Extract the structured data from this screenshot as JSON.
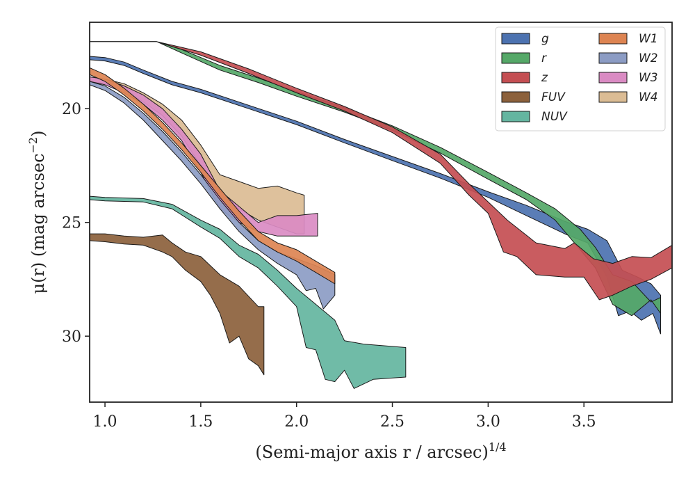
{
  "chart_data": {
    "type": "area",
    "xlabel": "(Semi-major axis r / arcsec)",
    "xlabel_sup": "1/4",
    "ylabel": "μ(r) (mag arcsec",
    "ylabel_sup": "−2",
    "ylabel_close": ")",
    "xlim": [
      0.92,
      3.96
    ],
    "ylim": [
      32.9,
      16.2
    ],
    "y_inverted": true,
    "xticks": [
      1.0,
      1.5,
      2.0,
      2.5,
      3.0,
      3.5
    ],
    "xtick_labels": [
      "1.0",
      "1.5",
      "2.0",
      "2.5",
      "3.0",
      "3.5"
    ],
    "yticks": [
      20,
      25,
      30
    ],
    "ytick_labels": [
      "20",
      "25",
      "30"
    ],
    "grid": false,
    "legend_position": "top-right",
    "legend_columns": 2,
    "series": [
      {
        "name": "g",
        "color": "#4c72b0",
        "upper": [
          [
            0.92,
            17.7
          ],
          [
            1.0,
            17.75
          ],
          [
            1.1,
            17.95
          ],
          [
            1.2,
            18.3
          ],
          [
            1.35,
            18.8
          ],
          [
            1.5,
            19.15
          ],
          [
            1.75,
            19.85
          ],
          [
            2.0,
            20.55
          ],
          [
            2.25,
            21.35
          ],
          [
            2.5,
            22.1
          ],
          [
            2.75,
            22.85
          ],
          [
            3.0,
            23.65
          ],
          [
            3.2,
            24.25
          ],
          [
            3.4,
            24.95
          ],
          [
            3.52,
            25.3
          ],
          [
            3.62,
            25.8
          ],
          [
            3.7,
            27.1
          ],
          [
            3.78,
            27.4
          ],
          [
            3.85,
            27.7
          ],
          [
            3.9,
            28.2
          ]
        ],
        "lower": [
          [
            0.92,
            17.85
          ],
          [
            1.0,
            17.9
          ],
          [
            1.1,
            18.1
          ],
          [
            1.2,
            18.45
          ],
          [
            1.35,
            18.95
          ],
          [
            1.5,
            19.3
          ],
          [
            1.75,
            20.0
          ],
          [
            2.0,
            20.7
          ],
          [
            2.25,
            21.5
          ],
          [
            2.5,
            22.28
          ],
          [
            2.75,
            23.05
          ],
          [
            3.0,
            23.9
          ],
          [
            3.2,
            24.7
          ],
          [
            3.4,
            25.5
          ],
          [
            3.52,
            25.9
          ],
          [
            3.62,
            27.4
          ],
          [
            3.68,
            29.1
          ],
          [
            3.74,
            28.9
          ],
          [
            3.8,
            29.3
          ],
          [
            3.86,
            29.0
          ],
          [
            3.9,
            29.9
          ]
        ]
      },
      {
        "name": "r",
        "color": "#55a868",
        "upper": [
          [
            0.92,
            17.05
          ],
          [
            1.27,
            17.05
          ],
          [
            1.4,
            17.4
          ],
          [
            1.6,
            18.1
          ],
          [
            1.8,
            18.65
          ],
          [
            2.0,
            19.25
          ],
          [
            2.25,
            19.95
          ],
          [
            2.5,
            20.75
          ],
          [
            2.75,
            21.7
          ],
          [
            3.0,
            22.8
          ],
          [
            3.2,
            23.7
          ],
          [
            3.35,
            24.4
          ],
          [
            3.48,
            25.3
          ],
          [
            3.56,
            26.1
          ],
          [
            3.65,
            27.3
          ],
          [
            3.75,
            27.6
          ],
          [
            3.85,
            28.5
          ],
          [
            3.9,
            28.3
          ]
        ],
        "lower": [
          [
            0.92,
            17.05
          ],
          [
            1.27,
            17.05
          ],
          [
            1.4,
            17.55
          ],
          [
            1.6,
            18.3
          ],
          [
            1.8,
            18.85
          ],
          [
            2.0,
            19.45
          ],
          [
            2.25,
            20.15
          ],
          [
            2.5,
            20.95
          ],
          [
            2.75,
            21.95
          ],
          [
            3.0,
            23.1
          ],
          [
            3.2,
            24.0
          ],
          [
            3.35,
            24.9
          ],
          [
            3.48,
            26.2
          ],
          [
            3.56,
            27.0
          ],
          [
            3.65,
            28.6
          ],
          [
            3.75,
            29.1
          ],
          [
            3.85,
            28.4
          ],
          [
            3.9,
            29.0
          ]
        ]
      },
      {
        "name": "z",
        "color": "#c44e52",
        "upper": [
          [
            0.92,
            17.05
          ],
          [
            1.27,
            17.05
          ],
          [
            1.5,
            17.5
          ],
          [
            1.75,
            18.25
          ],
          [
            2.0,
            19.1
          ],
          [
            2.25,
            19.9
          ],
          [
            2.5,
            20.8
          ],
          [
            2.75,
            22.0
          ],
          [
            2.9,
            23.3
          ],
          [
            3.0,
            24.1
          ],
          [
            3.1,
            24.9
          ],
          [
            3.25,
            25.9
          ],
          [
            3.4,
            26.15
          ],
          [
            3.45,
            25.9
          ],
          [
            3.55,
            26.6
          ],
          [
            3.65,
            26.8
          ],
          [
            3.75,
            26.5
          ],
          [
            3.85,
            26.55
          ],
          [
            3.9,
            26.3
          ],
          [
            3.96,
            26.0
          ]
        ],
        "lower": [
          [
            0.92,
            17.05
          ],
          [
            1.27,
            17.05
          ],
          [
            1.5,
            17.65
          ],
          [
            1.75,
            18.45
          ],
          [
            2.0,
            19.3
          ],
          [
            2.25,
            20.1
          ],
          [
            2.5,
            21.05
          ],
          [
            2.75,
            22.4
          ],
          [
            2.9,
            23.8
          ],
          [
            3.0,
            24.6
          ],
          [
            3.08,
            26.3
          ],
          [
            3.15,
            26.5
          ],
          [
            3.25,
            27.3
          ],
          [
            3.4,
            27.4
          ],
          [
            3.5,
            27.4
          ],
          [
            3.58,
            28.4
          ],
          [
            3.65,
            28.2
          ],
          [
            3.75,
            27.8
          ],
          [
            3.85,
            27.5
          ],
          [
            3.96,
            27.0
          ]
        ]
      },
      {
        "name": "FUV",
        "color": "#8c613c",
        "upper": [
          [
            0.92,
            25.5
          ],
          [
            1.0,
            25.5
          ],
          [
            1.1,
            25.6
          ],
          [
            1.2,
            25.65
          ],
          [
            1.3,
            25.55
          ],
          [
            1.35,
            25.9
          ],
          [
            1.42,
            26.3
          ],
          [
            1.5,
            26.5
          ],
          [
            1.6,
            27.3
          ],
          [
            1.7,
            27.8
          ],
          [
            1.8,
            28.7
          ],
          [
            1.83,
            28.7
          ]
        ],
        "lower": [
          [
            0.92,
            25.8
          ],
          [
            1.0,
            25.85
          ],
          [
            1.1,
            25.95
          ],
          [
            1.2,
            26.0
          ],
          [
            1.3,
            26.3
          ],
          [
            1.35,
            26.5
          ],
          [
            1.42,
            27.1
          ],
          [
            1.5,
            27.6
          ],
          [
            1.55,
            28.2
          ],
          [
            1.6,
            29.0
          ],
          [
            1.65,
            30.3
          ],
          [
            1.7,
            30.0
          ],
          [
            1.75,
            31.0
          ],
          [
            1.8,
            31.3
          ],
          [
            1.83,
            31.7
          ]
        ]
      },
      {
        "name": "NUV",
        "color": "#64b5a0",
        "upper": [
          [
            0.92,
            23.85
          ],
          [
            1.0,
            23.9
          ],
          [
            1.2,
            23.95
          ],
          [
            1.35,
            24.2
          ],
          [
            1.5,
            24.9
          ],
          [
            1.6,
            25.3
          ],
          [
            1.7,
            26.0
          ],
          [
            1.8,
            26.4
          ],
          [
            1.9,
            27.1
          ],
          [
            2.0,
            27.9
          ],
          [
            2.1,
            28.6
          ],
          [
            2.2,
            29.3
          ],
          [
            2.25,
            30.2
          ],
          [
            2.35,
            30.35
          ],
          [
            2.57,
            30.5
          ]
        ],
        "lower": [
          [
            0.92,
            24.0
          ],
          [
            1.0,
            24.05
          ],
          [
            1.2,
            24.1
          ],
          [
            1.35,
            24.4
          ],
          [
            1.5,
            25.2
          ],
          [
            1.6,
            25.7
          ],
          [
            1.7,
            26.5
          ],
          [
            1.8,
            27.0
          ],
          [
            1.9,
            27.8
          ],
          [
            2.0,
            28.7
          ],
          [
            2.05,
            30.5
          ],
          [
            2.1,
            30.6
          ],
          [
            2.15,
            31.9
          ],
          [
            2.2,
            32.0
          ],
          [
            2.25,
            31.5
          ],
          [
            2.3,
            32.3
          ],
          [
            2.4,
            31.9
          ],
          [
            2.57,
            31.8
          ]
        ]
      },
      {
        "name": "W1",
        "color": "#dd8452",
        "upper": [
          [
            0.92,
            18.2
          ],
          [
            1.0,
            18.5
          ],
          [
            1.1,
            19.1
          ],
          [
            1.2,
            19.8
          ],
          [
            1.3,
            20.6
          ],
          [
            1.4,
            21.5
          ],
          [
            1.5,
            22.5
          ],
          [
            1.6,
            23.5
          ],
          [
            1.7,
            24.5
          ],
          [
            1.8,
            25.4
          ],
          [
            1.9,
            25.9
          ],
          [
            2.0,
            26.2
          ],
          [
            2.1,
            26.7
          ],
          [
            2.2,
            27.2
          ]
        ],
        "lower": [
          [
            0.92,
            18.5
          ],
          [
            1.0,
            18.8
          ],
          [
            1.1,
            19.4
          ],
          [
            1.2,
            20.1
          ],
          [
            1.3,
            20.9
          ],
          [
            1.4,
            21.8
          ],
          [
            1.5,
            22.8
          ],
          [
            1.6,
            23.9
          ],
          [
            1.7,
            24.9
          ],
          [
            1.8,
            25.8
          ],
          [
            1.9,
            26.3
          ],
          [
            2.0,
            26.7
          ],
          [
            2.1,
            27.2
          ],
          [
            2.2,
            27.7
          ]
        ]
      },
      {
        "name": "W2",
        "color": "#8c9cc4",
        "upper": [
          [
            0.92,
            18.8
          ],
          [
            1.0,
            19.0
          ],
          [
            1.1,
            19.5
          ],
          [
            1.2,
            20.2
          ],
          [
            1.3,
            21.0
          ],
          [
            1.4,
            21.9
          ],
          [
            1.5,
            22.9
          ],
          [
            1.6,
            24.0
          ],
          [
            1.7,
            25.0
          ],
          [
            1.8,
            25.8
          ],
          [
            1.9,
            26.3
          ],
          [
            2.0,
            26.6
          ],
          [
            2.1,
            26.9
          ],
          [
            2.2,
            27.3
          ]
        ],
        "lower": [
          [
            0.92,
            18.95
          ],
          [
            1.0,
            19.2
          ],
          [
            1.1,
            19.75
          ],
          [
            1.2,
            20.5
          ],
          [
            1.3,
            21.4
          ],
          [
            1.4,
            22.3
          ],
          [
            1.5,
            23.3
          ],
          [
            1.6,
            24.4
          ],
          [
            1.7,
            25.4
          ],
          [
            1.8,
            26.2
          ],
          [
            1.9,
            26.8
          ],
          [
            2.0,
            27.3
          ],
          [
            2.05,
            28.0
          ],
          [
            2.1,
            27.9
          ],
          [
            2.14,
            28.8
          ],
          [
            2.2,
            28.2
          ]
        ]
      },
      {
        "name": "W3",
        "color": "#da8bc3",
        "upper": [
          [
            0.92,
            18.6
          ],
          [
            1.0,
            18.7
          ],
          [
            1.1,
            19.0
          ],
          [
            1.2,
            19.4
          ],
          [
            1.3,
            20.0
          ],
          [
            1.4,
            20.9
          ],
          [
            1.5,
            22.0
          ],
          [
            1.6,
            23.6
          ],
          [
            1.7,
            24.3
          ],
          [
            1.8,
            25.0
          ],
          [
            1.9,
            24.7
          ],
          [
            2.0,
            24.7
          ],
          [
            2.11,
            24.6
          ]
        ],
        "lower": [
          [
            0.92,
            18.8
          ],
          [
            1.0,
            18.95
          ],
          [
            1.1,
            19.3
          ],
          [
            1.2,
            19.8
          ],
          [
            1.3,
            20.5
          ],
          [
            1.4,
            21.4
          ],
          [
            1.5,
            22.8
          ],
          [
            1.6,
            24.4
          ],
          [
            1.7,
            25.0
          ],
          [
            1.8,
            25.4
          ],
          [
            1.9,
            25.6
          ],
          [
            2.0,
            25.6
          ],
          [
            2.11,
            25.6
          ]
        ]
      },
      {
        "name": "W4",
        "color": "#dbbc94",
        "upper": [
          [
            0.92,
            18.6
          ],
          [
            1.0,
            18.7
          ],
          [
            1.1,
            18.9
          ],
          [
            1.2,
            19.3
          ],
          [
            1.3,
            19.8
          ],
          [
            1.4,
            20.5
          ],
          [
            1.5,
            21.6
          ],
          [
            1.6,
            22.9
          ],
          [
            1.7,
            23.2
          ],
          [
            1.8,
            23.5
          ],
          [
            1.9,
            23.4
          ],
          [
            2.0,
            23.7
          ],
          [
            2.04,
            23.8
          ]
        ],
        "lower": [
          [
            0.92,
            18.8
          ],
          [
            1.0,
            18.9
          ],
          [
            1.1,
            19.2
          ],
          [
            1.2,
            19.7
          ],
          [
            1.3,
            20.3
          ],
          [
            1.4,
            21.2
          ],
          [
            1.5,
            22.5
          ],
          [
            1.6,
            23.8
          ],
          [
            1.7,
            24.4
          ],
          [
            1.8,
            24.9
          ],
          [
            1.9,
            25.2
          ],
          [
            2.0,
            25.5
          ],
          [
            2.04,
            25.5
          ]
        ]
      }
    ],
    "draw_order": [
      "W4",
      "W3",
      "W2",
      "W1",
      "NUV",
      "FUV",
      "g",
      "r",
      "z"
    ]
  }
}
